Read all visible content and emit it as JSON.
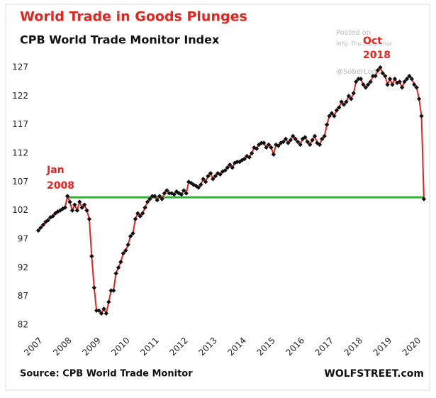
{
  "chart_data": {
    "type": "line",
    "title": "World Trade in Goods Plunges",
    "subtitle": "CPB World Trade Monitor Index",
    "source": "Source: CPB World Trade Monitor",
    "brand": "WOLFSTREET.com",
    "watermark": [
      "Posted on",
      "WSJ: The Daily Shot",
      "@SoberLook"
    ],
    "annotations": [
      {
        "lines": [
          "Jan",
          "2008"
        ]
      },
      {
        "lines": [
          "Oct",
          "2018"
        ]
      }
    ],
    "x": [
      2007.0,
      2007.083,
      2007.167,
      2007.25,
      2007.333,
      2007.417,
      2007.5,
      2007.583,
      2007.667,
      2007.75,
      2007.833,
      2007.917,
      2008.0,
      2008.083,
      2008.167,
      2008.25,
      2008.333,
      2008.417,
      2008.5,
      2008.583,
      2008.667,
      2008.75,
      2008.833,
      2008.917,
      2009.0,
      2009.083,
      2009.167,
      2009.25,
      2009.333,
      2009.417,
      2009.5,
      2009.583,
      2009.667,
      2009.75,
      2009.833,
      2009.917,
      2010.0,
      2010.083,
      2010.167,
      2010.25,
      2010.333,
      2010.417,
      2010.5,
      2010.583,
      2010.667,
      2010.75,
      2010.833,
      2010.917,
      2011.0,
      2011.083,
      2011.167,
      2011.25,
      2011.333,
      2011.417,
      2011.5,
      2011.583,
      2011.667,
      2011.75,
      2011.833,
      2011.917,
      2012.0,
      2012.083,
      2012.167,
      2012.25,
      2012.333,
      2012.417,
      2012.5,
      2012.583,
      2012.667,
      2012.75,
      2012.833,
      2012.917,
      2013.0,
      2013.083,
      2013.167,
      2013.25,
      2013.333,
      2013.417,
      2013.5,
      2013.583,
      2013.667,
      2013.75,
      2013.833,
      2013.917,
      2014.0,
      2014.083,
      2014.167,
      2014.25,
      2014.333,
      2014.417,
      2014.5,
      2014.583,
      2014.667,
      2014.75,
      2014.833,
      2014.917,
      2015.0,
      2015.083,
      2015.167,
      2015.25,
      2015.333,
      2015.417,
      2015.5,
      2015.583,
      2015.667,
      2015.75,
      2015.833,
      2015.917,
      2016.0,
      2016.083,
      2016.167,
      2016.25,
      2016.333,
      2016.417,
      2016.5,
      2016.583,
      2016.667,
      2016.75,
      2016.833,
      2016.917,
      2017.0,
      2017.083,
      2017.167,
      2017.25,
      2017.333,
      2017.417,
      2017.5,
      2017.583,
      2017.667,
      2017.75,
      2017.833,
      2017.917,
      2018.0,
      2018.083,
      2018.167,
      2018.25,
      2018.333,
      2018.417,
      2018.5,
      2018.583,
      2018.667,
      2018.75,
      2018.833,
      2018.917,
      2019.0,
      2019.083,
      2019.167,
      2019.25,
      2019.333,
      2019.417,
      2019.5,
      2019.583,
      2019.667,
      2019.75,
      2019.833,
      2019.917,
      2020.0,
      2020.083,
      2020.167,
      2020.25
    ],
    "series": [
      {
        "name": "CPB World Trade Monitor Index",
        "color": "#e8231e",
        "marker_color": "#111111",
        "values": [
          98.5,
          99,
          99.5,
          100,
          100.3,
          100.8,
          101,
          101.5,
          101.8,
          102,
          102.3,
          102.5,
          104.5,
          103.5,
          102,
          103,
          102,
          103.5,
          102.5,
          103,
          102,
          100.5,
          94,
          88.5,
          84.5,
          84.5,
          84,
          84.8,
          84,
          86,
          88,
          88,
          91,
          92,
          93,
          94.5,
          95,
          96,
          97.5,
          98,
          100.5,
          101.5,
          101,
          101.5,
          102.5,
          103.5,
          104,
          104.5,
          104.5,
          103.8,
          104.5,
          104,
          105,
          105.5,
          105,
          105,
          104.8,
          105.3,
          105,
          104.8,
          105.5,
          105,
          107,
          106.8,
          106.5,
          106.3,
          106,
          106.5,
          107.5,
          107,
          108,
          108.5,
          107.5,
          108,
          108.5,
          108.3,
          108.8,
          109,
          109.5,
          110,
          109.5,
          110.3,
          110.5,
          110.5,
          110.8,
          111,
          111.5,
          111.3,
          112,
          113,
          112.8,
          113.5,
          113.8,
          113.8,
          113,
          113.5,
          113,
          111.8,
          113.5,
          113.3,
          113.8,
          114,
          114.5,
          113.8,
          114.3,
          115,
          114.5,
          114,
          113.5,
          114.5,
          114.8,
          114,
          113.5,
          114.3,
          115,
          113.8,
          113.5,
          114.5,
          115,
          117,
          118.5,
          119,
          118.5,
          119.5,
          120,
          121,
          120.5,
          121,
          122,
          121.5,
          122.5,
          124.5,
          125,
          125,
          124,
          123.5,
          124,
          124.5,
          125.5,
          125.5,
          126.5,
          127,
          126,
          125.5,
          124,
          125,
          124,
          125,
          124.3,
          124.5,
          123.5,
          124.5,
          125,
          125.5,
          125,
          124,
          123.5,
          121.5,
          118.5,
          104
        ]
      }
    ],
    "hline": {
      "value": 104.3,
      "color": "#2db52d"
    },
    "xlim": [
      2006.9,
      2020.3
    ],
    "xticks": [
      2007,
      2008,
      2009,
      2010,
      2011,
      2012,
      2013,
      2014,
      2015,
      2016,
      2017,
      2018,
      2019,
      2020
    ],
    "ylim": [
      81,
      128
    ],
    "yticks": [
      82,
      87,
      92,
      97,
      102,
      107,
      112,
      117,
      122,
      127
    ],
    "grid": false
  }
}
